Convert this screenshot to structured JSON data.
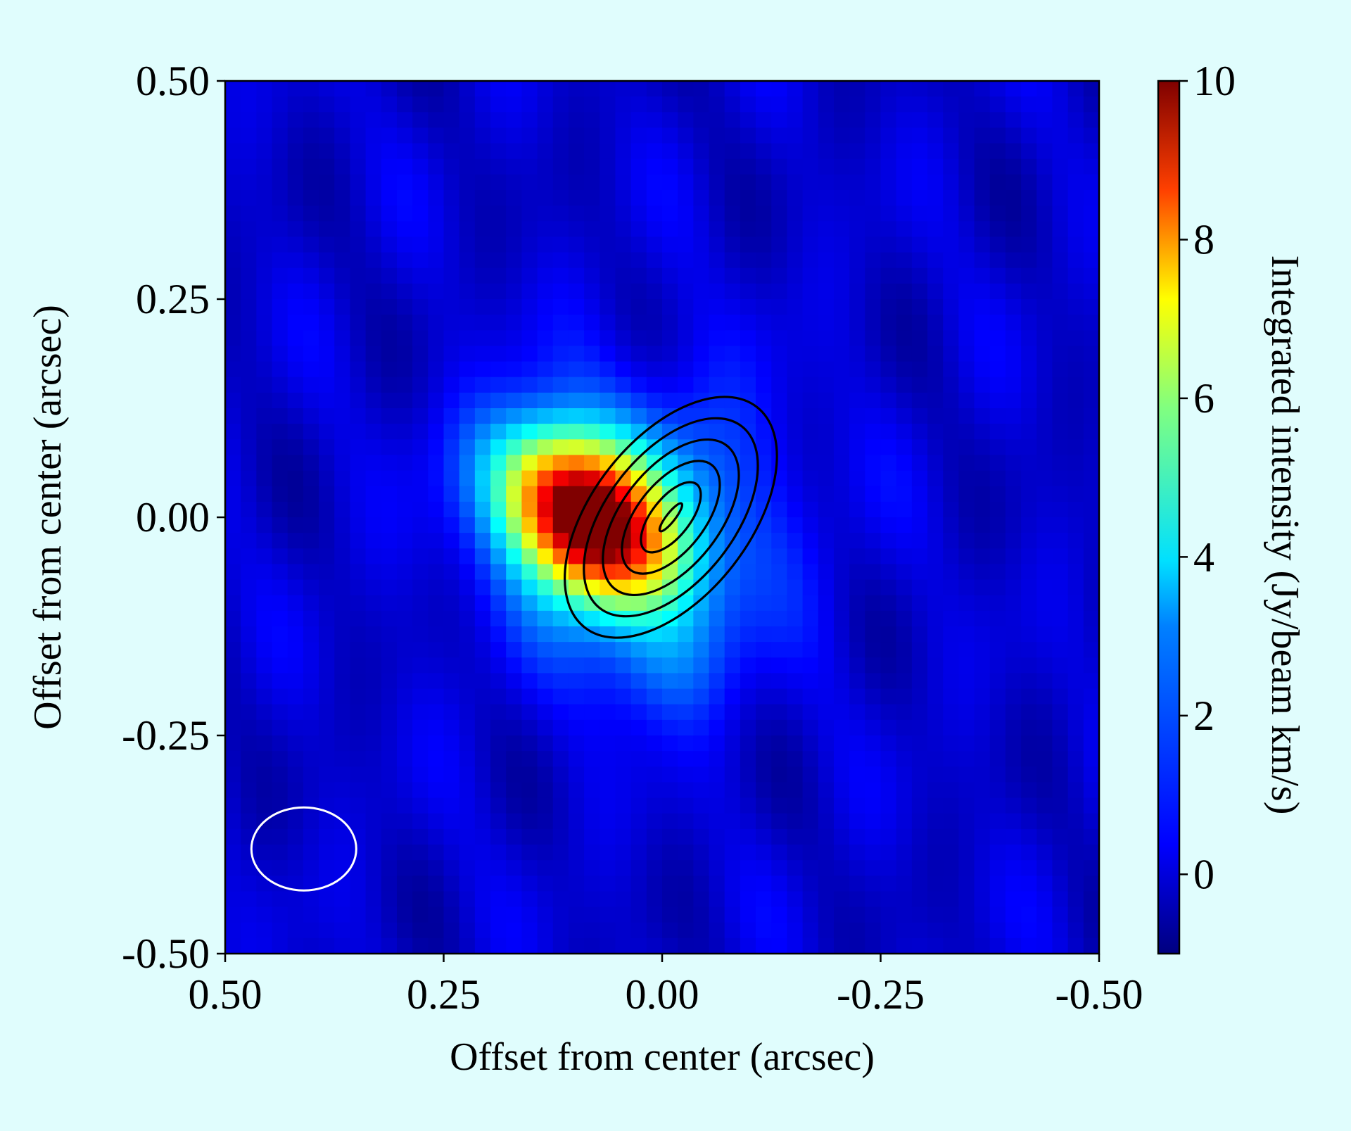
{
  "chart_data": {
    "type": "heatmap",
    "xlabel": "Offset from center (arcsec)",
    "ylabel": "Offset from center (arcsec)",
    "xlim": [
      0.5,
      -0.5
    ],
    "ylim": [
      -0.5,
      0.5
    ],
    "x_ticks": [
      0.5,
      0.25,
      0.0,
      -0.25,
      -0.5
    ],
    "x_tick_labels": [
      "0.50",
      "0.25",
      "0.00",
      "-0.25",
      "-0.50"
    ],
    "y_ticks": [
      0.5,
      0.25,
      0.0,
      -0.25,
      -0.5
    ],
    "y_tick_labels": [
      "0.50",
      "0.25",
      "0.00",
      "-0.25",
      "-0.50"
    ],
    "colorbar": {
      "label": "Integrated intensity (Jy/beam km/s)",
      "range": [
        -1,
        10
      ],
      "ticks": [
        0,
        2,
        4,
        6,
        8,
        10
      ],
      "tick_labels": [
        "0",
        "2",
        "4",
        "6",
        "8",
        "10"
      ],
      "colormap": "jet"
    },
    "grid": false,
    "emission_peak": {
      "x": 0.09,
      "y": 0.0,
      "value": 10.0
    },
    "contour_peak": {
      "x": -0.01,
      "y": 0.0
    },
    "beam": {
      "x": 0.41,
      "y": -0.38,
      "major_arcsec": 0.12,
      "minor_arcsec": 0.095,
      "color": "#ffffff"
    },
    "contours": {
      "color": "#000000",
      "levels": 6
    }
  }
}
